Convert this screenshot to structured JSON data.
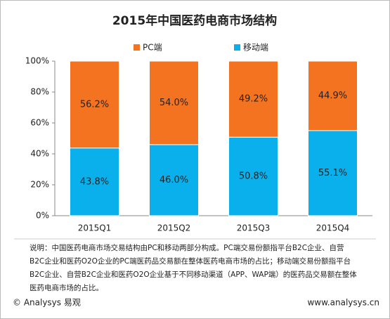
{
  "chart_data": {
    "type": "bar",
    "stacked": true,
    "title": "2015年中国医药电商市场结构",
    "categories": [
      "2015Q1",
      "2015Q2",
      "2015Q3",
      "2015Q4"
    ],
    "series": [
      {
        "name": "PC端",
        "color": "#f47321",
        "values": [
          56.2,
          54.0,
          49.2,
          44.9
        ],
        "value_labels": [
          "56.2%",
          "54.0%",
          "49.2%",
          "44.9%"
        ]
      },
      {
        "name": "移动端",
        "color": "#0ab0eb",
        "values": [
          43.8,
          46.0,
          50.8,
          55.1
        ],
        "value_labels": [
          "43.8%",
          "46.0%",
          "50.8%",
          "55.1%"
        ]
      }
    ],
    "ylim": [
      0,
      100
    ],
    "yticks": [
      {
        "value": 0,
        "label": "0%"
      },
      {
        "value": 20,
        "label": "20%"
      },
      {
        "value": 40,
        "label": "40%"
      },
      {
        "value": 60,
        "label": "60%"
      },
      {
        "value": 80,
        "label": "80%"
      },
      {
        "value": 100,
        "label": "100%"
      }
    ],
    "grid": false,
    "legend": "top",
    "note": [
      "说明：中国医药电商市场交易结构由PC和移动两部分构成。PC端交易份额指平台B2C企业、自营",
      "B2C企业和医药O2O企业的PC端医药品交易额在整体医药电商市场的占比；移动端交易份额指平台",
      "B2C企业、自营B2C企业和医药O2O企业基于不同移动渠道（APP、WAP端）的医药品交易额在整体",
      "医药电商市场的占比。"
    ],
    "source": "© Analysys 易观",
    "website": "www.analysys.cn"
  }
}
